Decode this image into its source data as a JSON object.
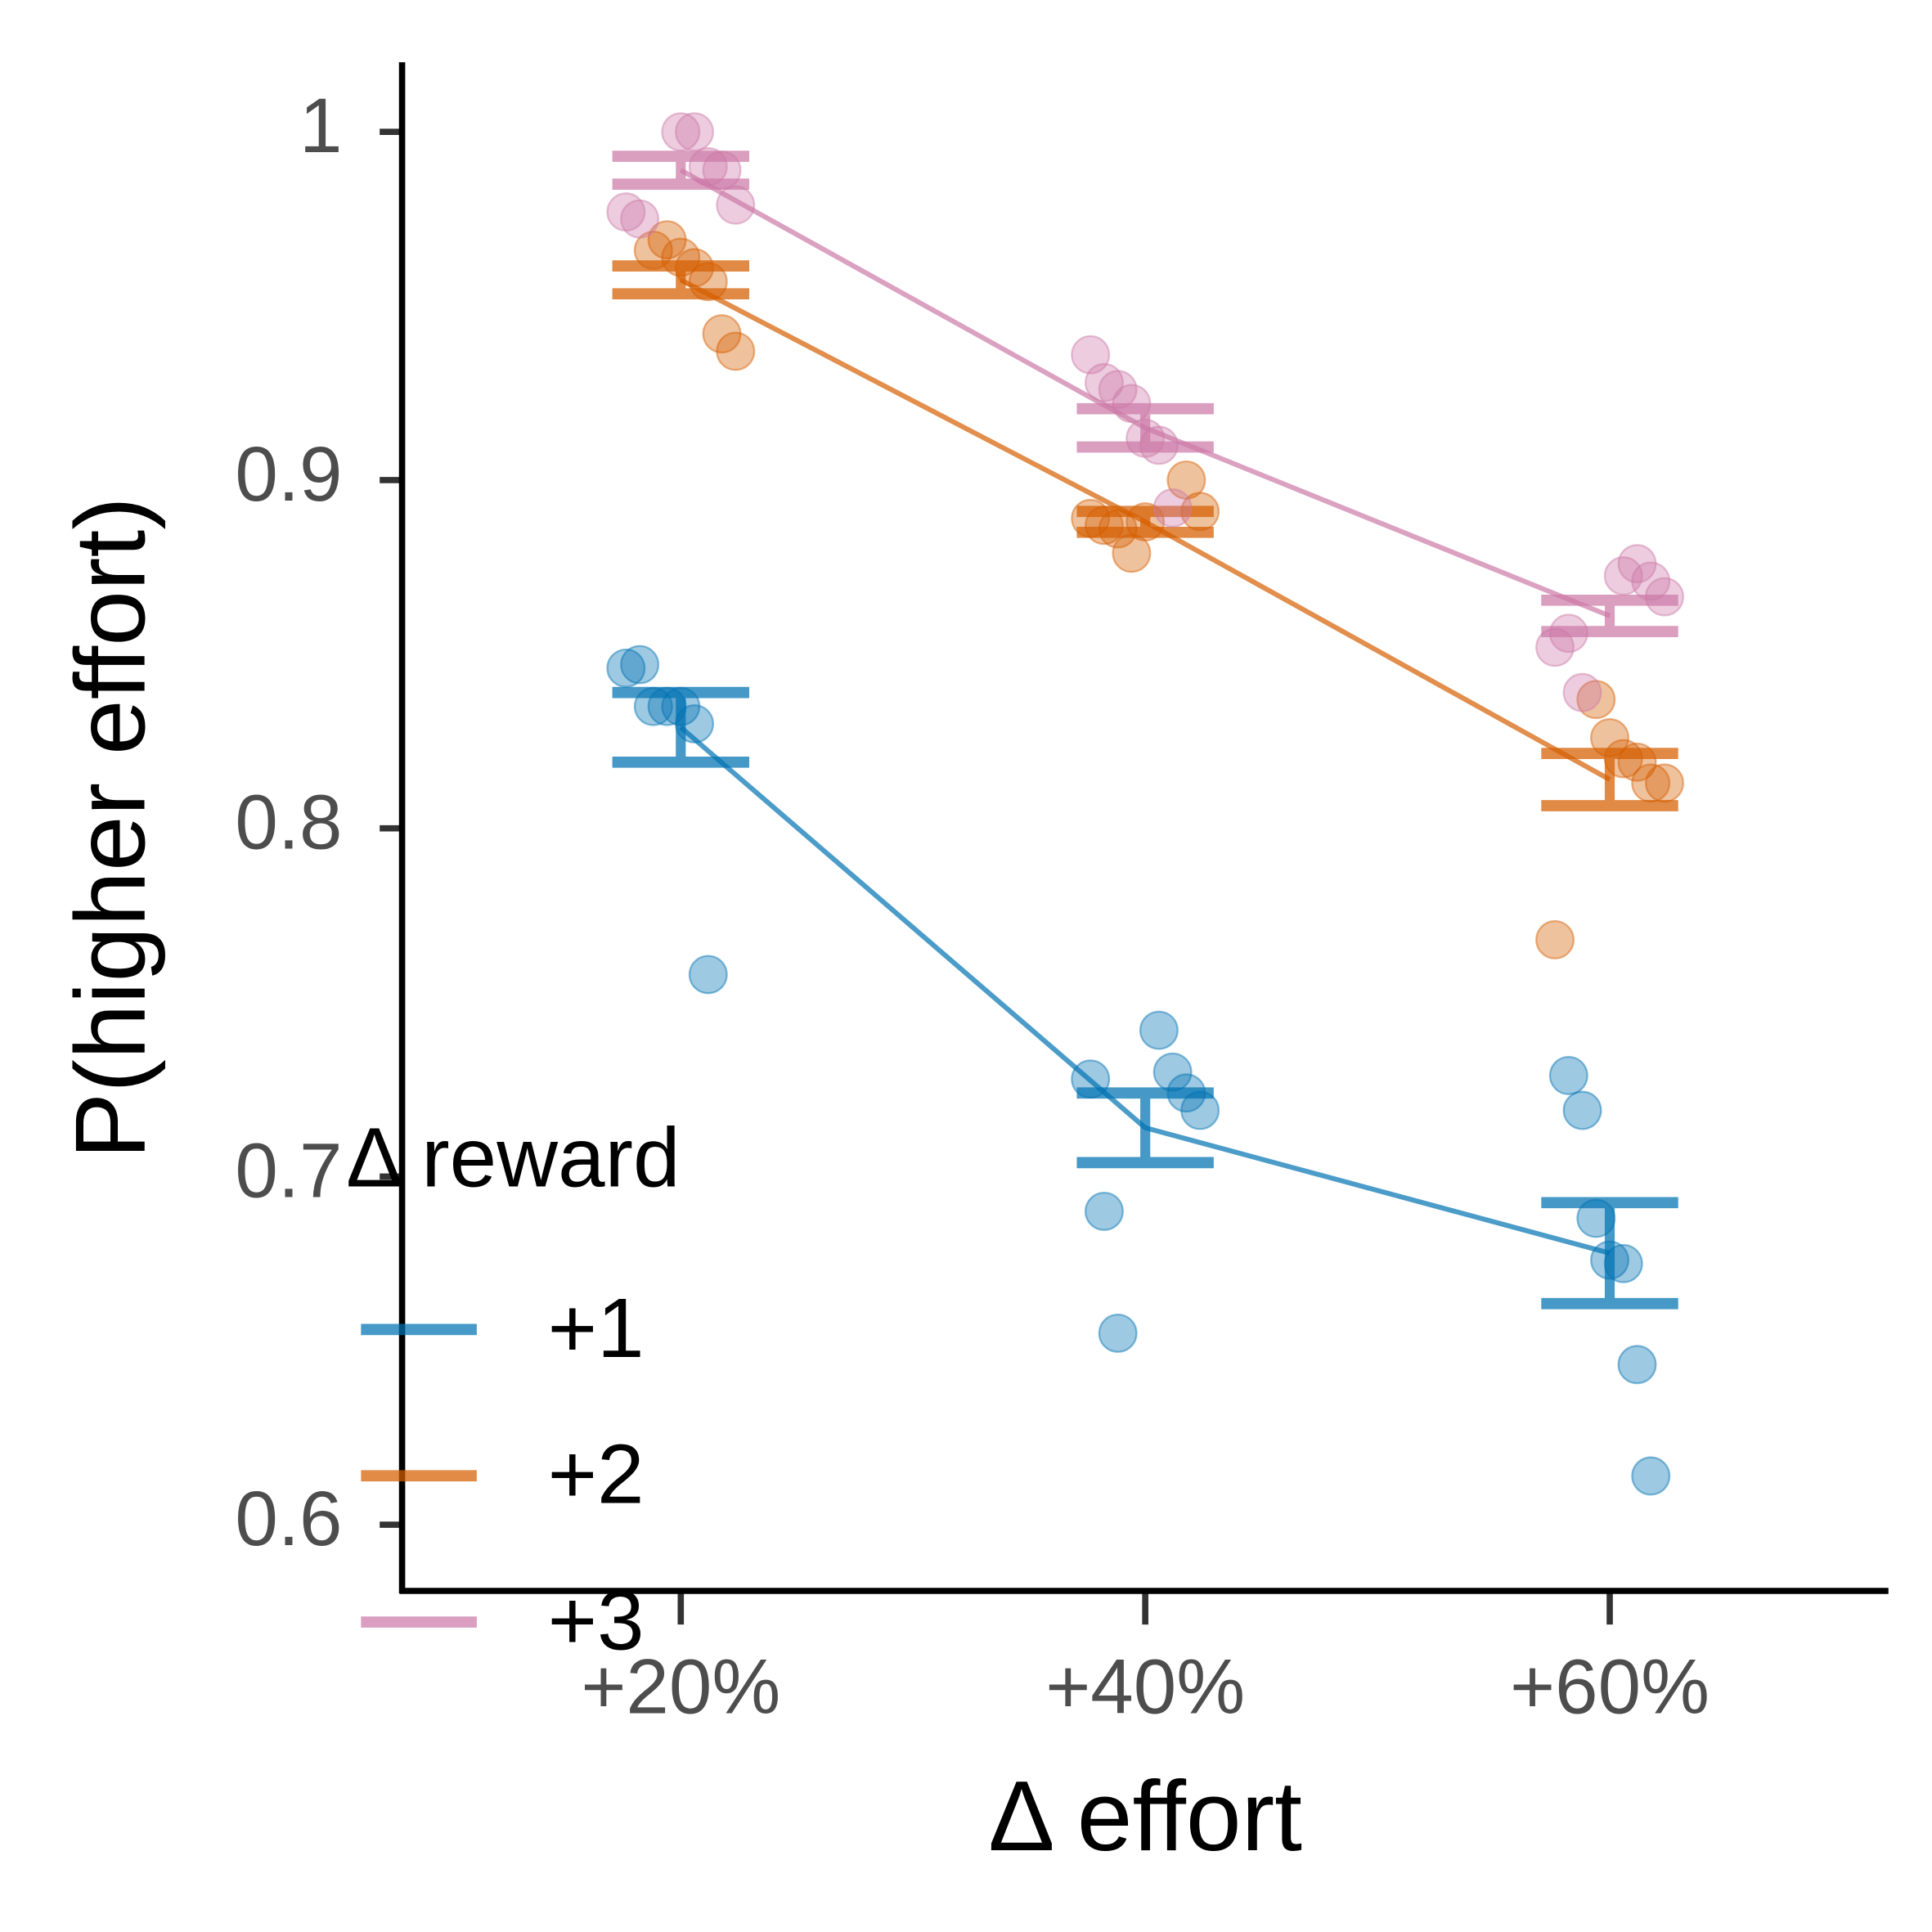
{
  "chart_data": {
    "type": "dotplot",
    "xlabel": "Δ effort",
    "ylabel": "P(higher effort)",
    "legend_title": "Δ reward",
    "categories": [
      "+20%",
      "+40%",
      "+60%"
    ],
    "ylim": [
      0.581,
      1.02
    ],
    "yticks": [
      0.6,
      0.7,
      0.8,
      0.9,
      1
    ],
    "series": [
      {
        "name": "+1",
        "color": "#0072B2",
        "values": [
          0.829,
          0.714,
          0.678
        ],
        "errors": [
          0.01,
          0.01,
          0.0145
        ],
        "points": [
          [
            0.846,
            0.847,
            0.835,
            0.835,
            0.835,
            0.83,
            0.758
          ],
          [
            0.742,
            0.73,
            0.724,
            0.719,
            0.728,
            0.69,
            0.655
          ],
          [
            0.729,
            0.719,
            0.688,
            0.676,
            0.675,
            0.646,
            0.614
          ]
        ]
      },
      {
        "name": "+2",
        "color": "#D55E00",
        "values": [
          0.9575,
          0.888,
          0.814
        ],
        "errors": [
          0.004,
          0.003,
          0.0075
        ],
        "points": [
          [
            0.966,
            0.969,
            0.964,
            0.961,
            0.957,
            0.942,
            0.937
          ],
          [
            0.9,
            0.891,
            0.889,
            0.887,
            0.886,
            0.879,
            0.888
          ],
          [
            0.837,
            0.826,
            0.82,
            0.819,
            0.813,
            0.813,
            0.768
          ]
        ]
      },
      {
        "name": "+3",
        "color": "#CC79A7",
        "values": [
          0.989,
          0.915,
          0.861
        ],
        "errors": [
          0.004,
          0.0055,
          0.0045
        ],
        "points": [
          [
            1.0,
            1.0,
            0.99,
            0.989,
            0.979,
            0.977,
            0.975
          ],
          [
            0.936,
            0.928,
            0.926,
            0.922,
            0.912,
            0.91,
            0.892
          ],
          [
            0.8725,
            0.876,
            0.871,
            0.8665,
            0.852,
            0.856,
            0.839
          ]
        ]
      }
    ]
  }
}
